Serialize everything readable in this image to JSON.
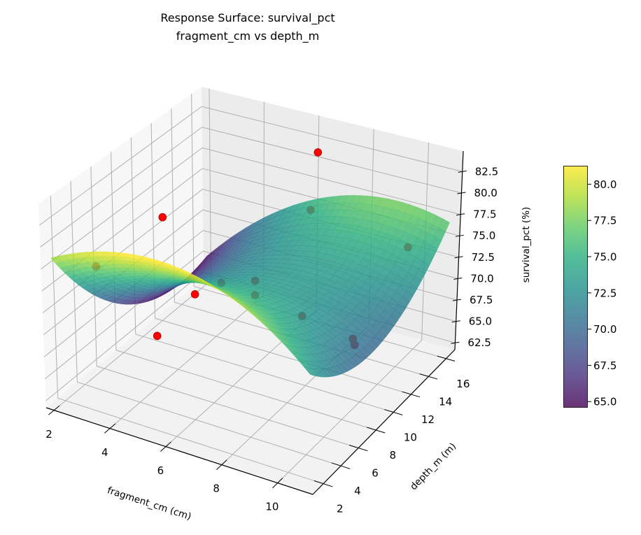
{
  "chart_data": {
    "type": "surface",
    "title": [
      "Response Surface: survival_pct",
      "fragment_cm vs depth_m"
    ],
    "xlabel": "fragment_cm (cm)",
    "ylabel": "depth_m (m)",
    "zlabel": "survival_pct (%)",
    "xlim": [
      1.72,
      11.26
    ],
    "ylim": [
      0.8,
      17.0
    ],
    "zlim": [
      61.7,
      84.9
    ],
    "xticks": [
      "2",
      "4",
      "6",
      "8",
      "10"
    ],
    "yticks": [
      "2",
      "4",
      "6",
      "8",
      "10",
      "12",
      "14",
      "16"
    ],
    "zticks": [
      "62.5",
      "65.0",
      "67.5",
      "70.0",
      "72.5",
      "75.0",
      "77.5",
      "80.0",
      "82.5"
    ],
    "grid": true,
    "colormap": "viridis",
    "surface": {
      "x_range": [
        2,
        11
      ],
      "y_range": [
        1,
        16.6
      ],
      "model": "quadratic",
      "terms": {
        "intercept": 76.98,
        "x": 2.611,
        "y": -2.669,
        "x2": -0.2519,
        "y2": 0.0879,
        "xy": 0.1182
      }
    },
    "points": [
      {
        "x": 7.0,
        "y": 14.0,
        "z": 84.0
      },
      {
        "x": 2.9,
        "y": 9.7,
        "z": 76.8
      },
      {
        "x": 4.6,
        "y": 8.1,
        "z": 70.8
      },
      {
        "x": 3.6,
        "y": 7.0,
        "z": 66.1
      },
      {
        "x": 2.2,
        "y": 4.9,
        "z": 74.7
      },
      {
        "x": 5.0,
        "y": 9.7,
        "z": 71.0
      },
      {
        "x": 6.5,
        "y": 8.9,
        "z": 73.3
      },
      {
        "x": 6.4,
        "y": 9.2,
        "z": 71.3
      },
      {
        "x": 7.0,
        "y": 13.3,
        "z": 77.9
      },
      {
        "x": 10.3,
        "y": 14.1,
        "z": 75.6
      },
      {
        "x": 8.2,
        "y": 8.9,
        "z": 70.8
      },
      {
        "x": 9.8,
        "y": 9.7,
        "z": 68.9
      },
      {
        "x": 9.8,
        "y": 9.9,
        "z": 68.0
      }
    ],
    "point_color": "#ff0000",
    "colorbar": {
      "range": [
        64.6,
        81.25
      ],
      "ticks": [
        "65.0",
        "67.5",
        "70.0",
        "72.5",
        "75.0",
        "77.5",
        "80.0"
      ]
    }
  }
}
